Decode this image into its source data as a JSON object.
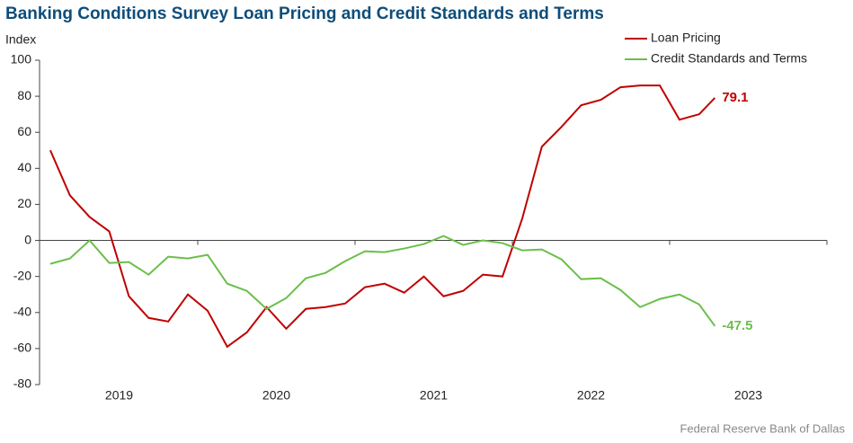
{
  "chart_data": {
    "type": "line",
    "title": "Banking Conditions Survey Loan Pricing and Credit Standards and Terms",
    "y_label": "Index",
    "source": "Federal Reserve Bank of Dallas",
    "x": [
      2019.0625,
      2019.1875,
      2019.3125,
      2019.4375,
      2019.5625,
      2019.6875,
      2019.8125,
      2019.9375,
      2020.0625,
      2020.1875,
      2020.3125,
      2020.4375,
      2020.5625,
      2020.6875,
      2020.8125,
      2020.9375,
      2021.0625,
      2021.1875,
      2021.3125,
      2021.4375,
      2021.5625,
      2021.6875,
      2021.8125,
      2021.9375,
      2022.0625,
      2022.1875,
      2022.3125,
      2022.4375,
      2022.5625,
      2022.6875,
      2022.8125,
      2022.9375,
      2023.0625,
      2023.1875,
      2023.2875
    ],
    "xlim": [
      2019,
      2024
    ],
    "xticks": [
      {
        "value": 2019.5,
        "label": "2019"
      },
      {
        "value": 2020.5,
        "label": "2020"
      },
      {
        "value": 2021.5,
        "label": "2021"
      },
      {
        "value": 2022.5,
        "label": "2022"
      },
      {
        "value": 2023.5,
        "label": "2023"
      }
    ],
    "xtick_marks": [
      2020,
      2021,
      2022,
      2023,
      2024
    ],
    "ylim": [
      -80,
      100
    ],
    "yticks": [
      -80,
      -60,
      -40,
      -20,
      0,
      20,
      40,
      60,
      80,
      100
    ],
    "legend": "top-right",
    "series": [
      {
        "name": "Loan Pricing",
        "color": "#c00000",
        "values": [
          50,
          25,
          13,
          5,
          -31,
          -43,
          -45,
          -30,
          -39,
          -59,
          -51,
          -37,
          -49,
          -38,
          -37,
          -35,
          -26,
          -24,
          -29,
          -20,
          -31,
          -28,
          -19,
          -20,
          12,
          52,
          63,
          75,
          78,
          85,
          86,
          86,
          67,
          70,
          79.1
        ],
        "value_labels": [
          null,
          null,
          null,
          null,
          null,
          null,
          null,
          null,
          null,
          null,
          null,
          null,
          null,
          null,
          null,
          null,
          null,
          null,
          null,
          null,
          null,
          null,
          null,
          null,
          null,
          null,
          null,
          null,
          null,
          null,
          null,
          null,
          null,
          null,
          "79.1"
        ]
      },
      {
        "name": "Credit Standards and Terms",
        "color": "#6abf4b",
        "values": [
          -13,
          -10,
          0,
          -12.5,
          -12,
          -19,
          -9,
          -10,
          -8,
          -24,
          -28,
          -38,
          -32,
          -21,
          -18,
          -11.5,
          -6,
          -6.5,
          -4.5,
          -2,
          2.5,
          -2.5,
          0,
          -1.5,
          -5.5,
          -5,
          -10.5,
          -21.5,
          -21,
          -27.5,
          -37,
          -32.5,
          -30,
          -35.5,
          -47.5
        ],
        "value_labels": [
          null,
          null,
          null,
          null,
          null,
          null,
          null,
          null,
          null,
          null,
          null,
          null,
          null,
          null,
          null,
          null,
          null,
          null,
          null,
          null,
          null,
          null,
          null,
          null,
          null,
          null,
          null,
          null,
          null,
          null,
          null,
          null,
          null,
          null,
          "-47.5"
        ]
      }
    ]
  }
}
